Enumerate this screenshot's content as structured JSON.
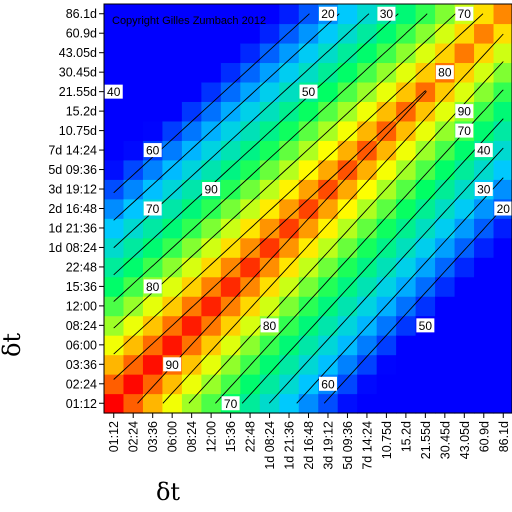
{
  "chart_data": {
    "type": "heatmap",
    "copyright": "Copyright Gilles Zumbach 2012",
    "xlabel": "δt",
    "ylabel": "δt",
    "x_ticks": [
      "01:12",
      "02:24",
      "03:36",
      "06:00",
      "08:24",
      "12:00",
      "15:36",
      "22:48",
      "1d 08:24",
      "1d 21:36",
      "2d 16:48",
      "3d 19:12",
      "5d 09:36",
      "7d 14:24",
      "10.75d",
      "15.2d",
      "21.55d",
      "30.45d",
      "43.05d",
      "60.9d",
      "86.1d"
    ],
    "y_ticks": [
      "01:12",
      "02:24",
      "03:36",
      "06:00",
      "08:24",
      "12:00",
      "15:36",
      "22:48",
      "1d 08:24",
      "1d 21:36",
      "2d 16:48",
      "3d 19:12",
      "5d 09:36",
      "7d 14:24",
      "10.75d",
      "15.2d",
      "21.55d",
      "30.45d",
      "43.05d",
      "60.9d",
      "86.1d"
    ],
    "value_range": [
      0,
      100
    ],
    "contour_levels": [
      20,
      30,
      40,
      50,
      60,
      70,
      80,
      90
    ],
    "contour_labels": [
      {
        "text": "20",
        "x_tick": "3d 19:12",
        "y_tick": "86.1d"
      },
      {
        "text": "30",
        "x_tick": "10.75d",
        "y_tick": "86.1d"
      },
      {
        "text": "70",
        "x_tick": "43.05d",
        "y_tick": "86.1d"
      },
      {
        "text": "80",
        "x_tick": "30.45d",
        "y_tick": "30.45d"
      },
      {
        "text": "40",
        "x_tick": "01:12",
        "y_tick": "21.55d"
      },
      {
        "text": "50",
        "x_tick": "2d 16:48",
        "y_tick": "21.55d"
      },
      {
        "text": "90",
        "x_tick": "43.05d",
        "y_tick": "15.2d"
      },
      {
        "text": "70",
        "x_tick": "43.05d",
        "y_tick": "10.75d"
      },
      {
        "text": "60",
        "x_tick": "03:36",
        "y_tick": "7d 14:24"
      },
      {
        "text": "40",
        "x_tick": "60.9d",
        "y_tick": "7d 14:24"
      },
      {
        "text": "30",
        "x_tick": "60.9d",
        "y_tick": "3d 19:12"
      },
      {
        "text": "90",
        "x_tick": "12:00",
        "y_tick": "3d 19:12"
      },
      {
        "text": "20",
        "x_tick": "86.1d",
        "y_tick": "2d 16:48"
      },
      {
        "text": "70",
        "x_tick": "03:36",
        "y_tick": "2d 16:48"
      },
      {
        "text": "80",
        "x_tick": "03:36",
        "y_tick": "15:36"
      },
      {
        "text": "80",
        "x_tick": "1d 08:24",
        "y_tick": "08:24"
      },
      {
        "text": "50",
        "x_tick": "21.55d",
        "y_tick": "08:24"
      },
      {
        "text": "90",
        "x_tick": "06:00",
        "y_tick": "03:36"
      },
      {
        "text": "60",
        "x_tick": "3d 19:12",
        "y_tick": "02:24"
      },
      {
        "text": "70",
        "x_tick": "15:36",
        "y_tick": "01:12"
      }
    ],
    "colorscale": [
      "#0000ff",
      "#00c8ff",
      "#00ff64",
      "#ffff00",
      "#ff0000"
    ]
  }
}
